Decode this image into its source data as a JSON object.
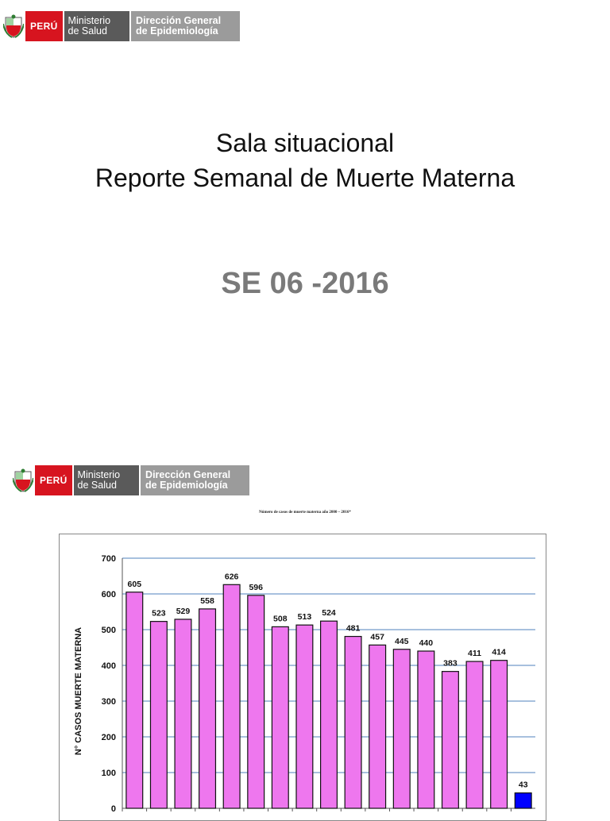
{
  "header": {
    "country": "PERÚ",
    "ministry_line1": "Ministerio",
    "ministry_line2": "de Salud",
    "dept_line1": "Dirección General",
    "dept_line2": "de Epidemiología"
  },
  "slide1": {
    "title_line1": "Sala situacional",
    "title_line2": "Reporte Semanal de Muerte Materna",
    "week": "SE 06 -2016"
  },
  "slide2": {
    "caption": "Número de casos  de muerte materna año 2000 –  2016*"
  },
  "colors": {
    "bar": "#ee77ee",
    "bar_last": "#0000ff",
    "grid": "#4f81bd",
    "brand_red": "#d7141f"
  },
  "chart_data": {
    "type": "bar",
    "title": "",
    "ylabel": "N° CASOS MUERTE MATERNA",
    "xlabel": "",
    "ylim": [
      0,
      700
    ],
    "yticks": [
      0,
      100,
      200,
      300,
      400,
      500,
      600,
      700
    ],
    "grid": true,
    "values": [
      605,
      523,
      529,
      558,
      626,
      596,
      508,
      513,
      524,
      481,
      457,
      445,
      440,
      383,
      411,
      414,
      43
    ],
    "data_labels": [
      "605",
      "523",
      "529",
      "558",
      "626",
      "596",
      "508",
      "513",
      "524",
      "481",
      "457",
      "445",
      "440",
      "383",
      "411",
      "414",
      "43"
    ]
  }
}
